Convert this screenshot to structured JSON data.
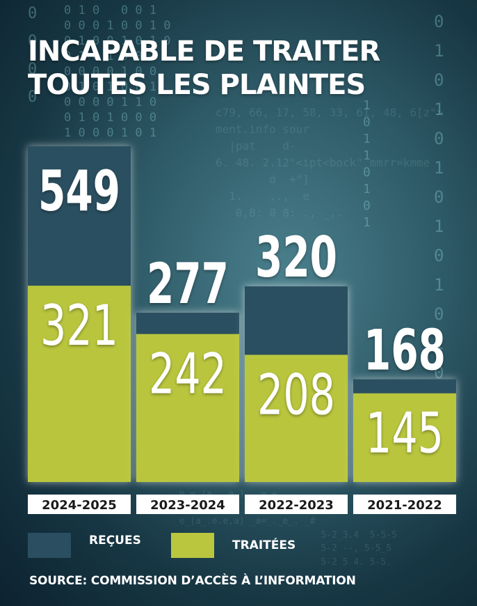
{
  "title_lines": [
    "INCAPABLE DE TRAITER",
    "TOUTES LES PLAINTES"
  ],
  "legend": {
    "received": "REÇUES",
    "processed": "TRAITÉES"
  },
  "source": "SOURCE: COMMISSION D’ACCÈS À L’INFORMATION",
  "colors": {
    "received": "#2b4f60",
    "processed": "#b9c63e",
    "background": "#1d3f4d",
    "label_bg": "#ffffff"
  },
  "chart_data": {
    "type": "bar",
    "stacked": "overlay",
    "title": "INCAPABLE DE TRAITER TOUTES LES PLAINTES",
    "categories": [
      "2024-2025",
      "2023-2024",
      "2022-2023",
      "2021-2022"
    ],
    "series": [
      {
        "name": "REÇUES",
        "values": [
          549,
          277,
          320,
          168
        ]
      },
      {
        "name": "TRAITÉES",
        "values": [
          321,
          242,
          208,
          145
        ]
      }
    ],
    "ylim": [
      0,
      549
    ],
    "grid": false,
    "legend_position": "bottom-left"
  }
}
